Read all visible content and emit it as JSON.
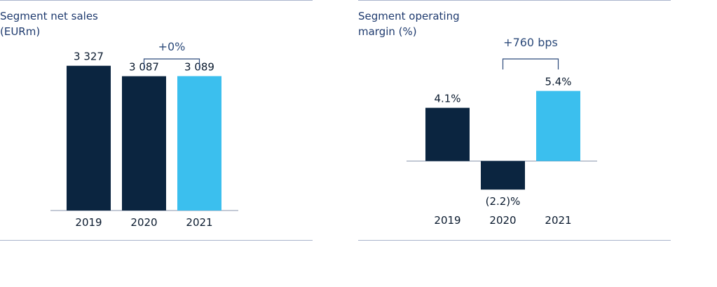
{
  "chart_data": [
    {
      "type": "bar",
      "title_line1": "Segment net sales",
      "title_line2": "(EURm)",
      "categories": [
        "2019",
        "2020",
        "2021"
      ],
      "values": [
        3327,
        3087,
        3089
      ],
      "value_labels": [
        "3 327",
        "3 087",
        "3 089"
      ],
      "colors": [
        "#0b2540",
        "#0b2540",
        "#3bbfee"
      ],
      "change_label": "+0%",
      "ylim": [
        0,
        4000
      ]
    },
    {
      "type": "bar",
      "title_line1": "Segment operating",
      "title_line2": "margin (%)",
      "categories": [
        "2019",
        "2020",
        "2021"
      ],
      "values": [
        4.1,
        -2.2,
        5.4
      ],
      "value_labels": [
        "4.1%",
        "(2.2)%",
        "5.4%"
      ],
      "colors": [
        "#0b2540",
        "#0b2540",
        "#3bbfee"
      ],
      "change_label": "+760 bps",
      "ylim": [
        -3,
        7
      ]
    }
  ]
}
